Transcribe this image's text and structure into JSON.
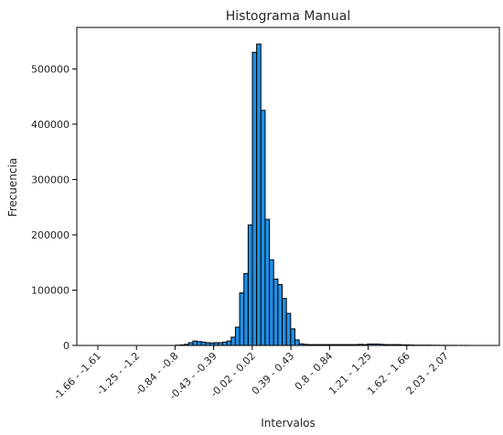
{
  "chart_data": {
    "type": "bar",
    "title": "Histograma Manual",
    "xlabel": "Intervalos",
    "ylabel": "Frecuencia",
    "ylim": [
      0,
      575000
    ],
    "yticks": [
      0,
      100000,
      200000,
      300000,
      400000,
      500000
    ],
    "xtick_labels": [
      "-1.66 - -1.61",
      "-1.25 - -1.2",
      "-0.84 - -0.8",
      "-0.43 - -0.39",
      "-0.02 - 0.02",
      "0.39 - 0.43",
      "0.8 - 0.84",
      "1.21 - 1.25",
      "1.62 - 1.66",
      "2.03 - 2.07"
    ],
    "bar_color": "#1f8fe5",
    "edge_color": "#000000",
    "series": [
      {
        "values": [
          0,
          0,
          0,
          0,
          0,
          0,
          0,
          0,
          0,
          0,
          0,
          0,
          0,
          0,
          0,
          0,
          0,
          0,
          0,
          500,
          1000,
          2000,
          5000,
          8000,
          7000,
          6000,
          5000,
          4500,
          5000,
          5000,
          6000,
          8000,
          15000,
          33000,
          95000,
          130000,
          218000,
          530000,
          545000,
          425000,
          228000,
          155000,
          120000,
          110000,
          85000,
          58000,
          30000,
          10000,
          3000,
          2000,
          1500,
          1500,
          1500,
          1500,
          1500,
          1500,
          1500,
          1500,
          1500,
          1500,
          1500,
          1500,
          2000,
          1500,
          2500,
          2500,
          2500,
          2000,
          1500,
          1500,
          1500,
          1500,
          1000,
          1000,
          800,
          500,
          500,
          500,
          500,
          300,
          300,
          200,
          200,
          200,
          200,
          100,
          100,
          100,
          0,
          0,
          0
        ]
      }
    ]
  }
}
